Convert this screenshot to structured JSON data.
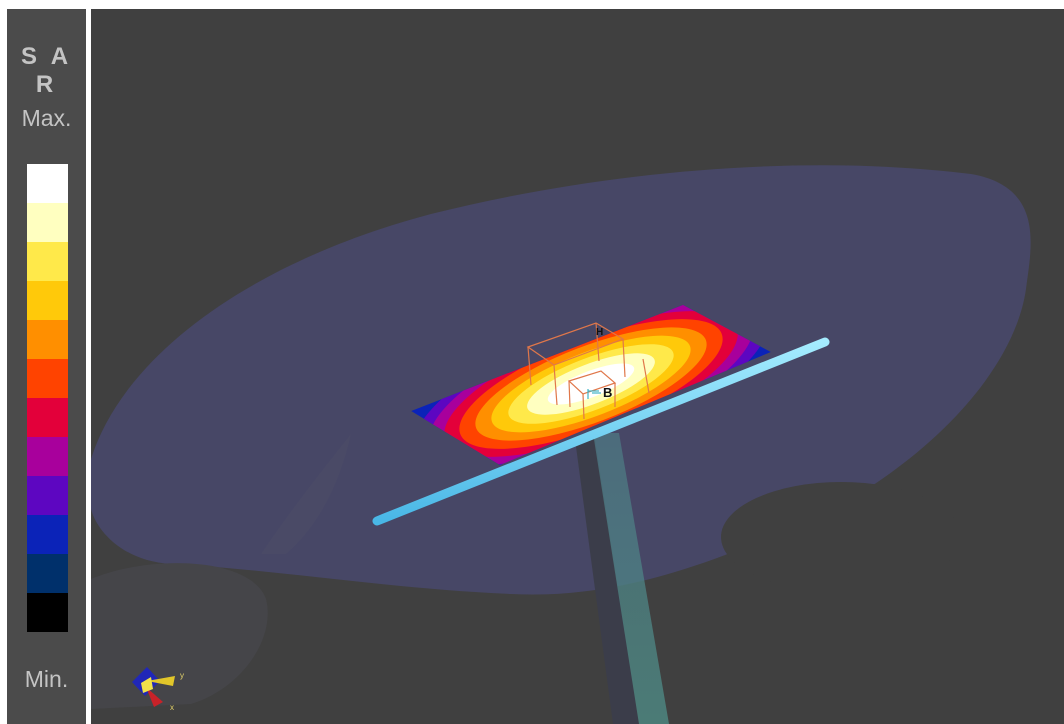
{
  "legend": {
    "title": "S A R",
    "max_label": "Max.",
    "min_label": "Min.",
    "colors": [
      "#ffffff",
      "#ffffc0",
      "#ffe94a",
      "#ffc90a",
      "#ff8f00",
      "#ff4300",
      "#e3003a",
      "#a8009c",
      "#5d06c1",
      "#0b23b8",
      "#00306b",
      "#000000"
    ]
  },
  "scene": {
    "markers": {
      "h": "H",
      "b": "B"
    },
    "axes": {
      "y": "y",
      "x": "x"
    }
  }
}
